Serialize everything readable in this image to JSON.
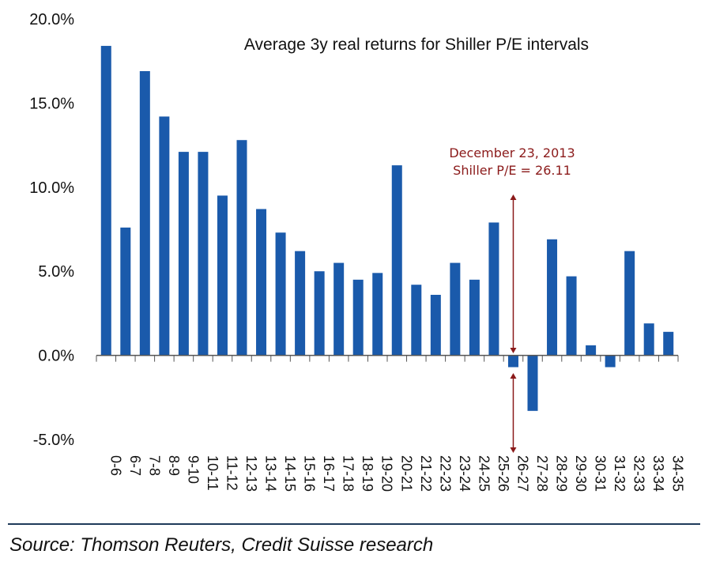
{
  "chart_data": {
    "type": "bar",
    "title": "Average 3y real returns for Shiller P/E intervals",
    "xlabel": "",
    "ylabel": "",
    "ylim": [
      -5.0,
      20.0
    ],
    "yticks": [
      "20.0%",
      "15.0%",
      "10.0%",
      "5.0%",
      "0.0%",
      "-5.0%"
    ],
    "ytick_values": [
      20,
      15,
      10,
      5,
      0,
      -5
    ],
    "categories": [
      "0-6",
      "6-7",
      "7-8",
      "8-9",
      "9-10",
      "10-11",
      "11-12",
      "12-13",
      "13-14",
      "14-15",
      "15-16",
      "16-17",
      "17-18",
      "18-19",
      "19-20",
      "20-21",
      "21-22",
      "22-23",
      "23-24",
      "24-25",
      "25-26",
      "26-27",
      "27-28",
      "28-29",
      "29-30",
      "30-31",
      "31-32",
      "32-33",
      "33-34",
      "34-35"
    ],
    "values": [
      18.4,
      7.6,
      16.9,
      14.2,
      12.1,
      12.1,
      9.5,
      12.8,
      8.7,
      7.3,
      6.2,
      5.0,
      5.5,
      4.5,
      4.9,
      11.3,
      4.2,
      3.6,
      5.5,
      4.5,
      7.9,
      -0.7,
      -3.3,
      6.9,
      4.7,
      0.6,
      -0.7,
      6.2,
      1.9,
      1.4
    ],
    "bar_color": "#1a5aab",
    "annotation": {
      "line1": "December 23, 2013",
      "line2": "Shiller P/E = 26.11",
      "category": "26-27",
      "color": "#8b1a1a"
    }
  },
  "source": "Source: Thomson Reuters, Credit Suisse research"
}
